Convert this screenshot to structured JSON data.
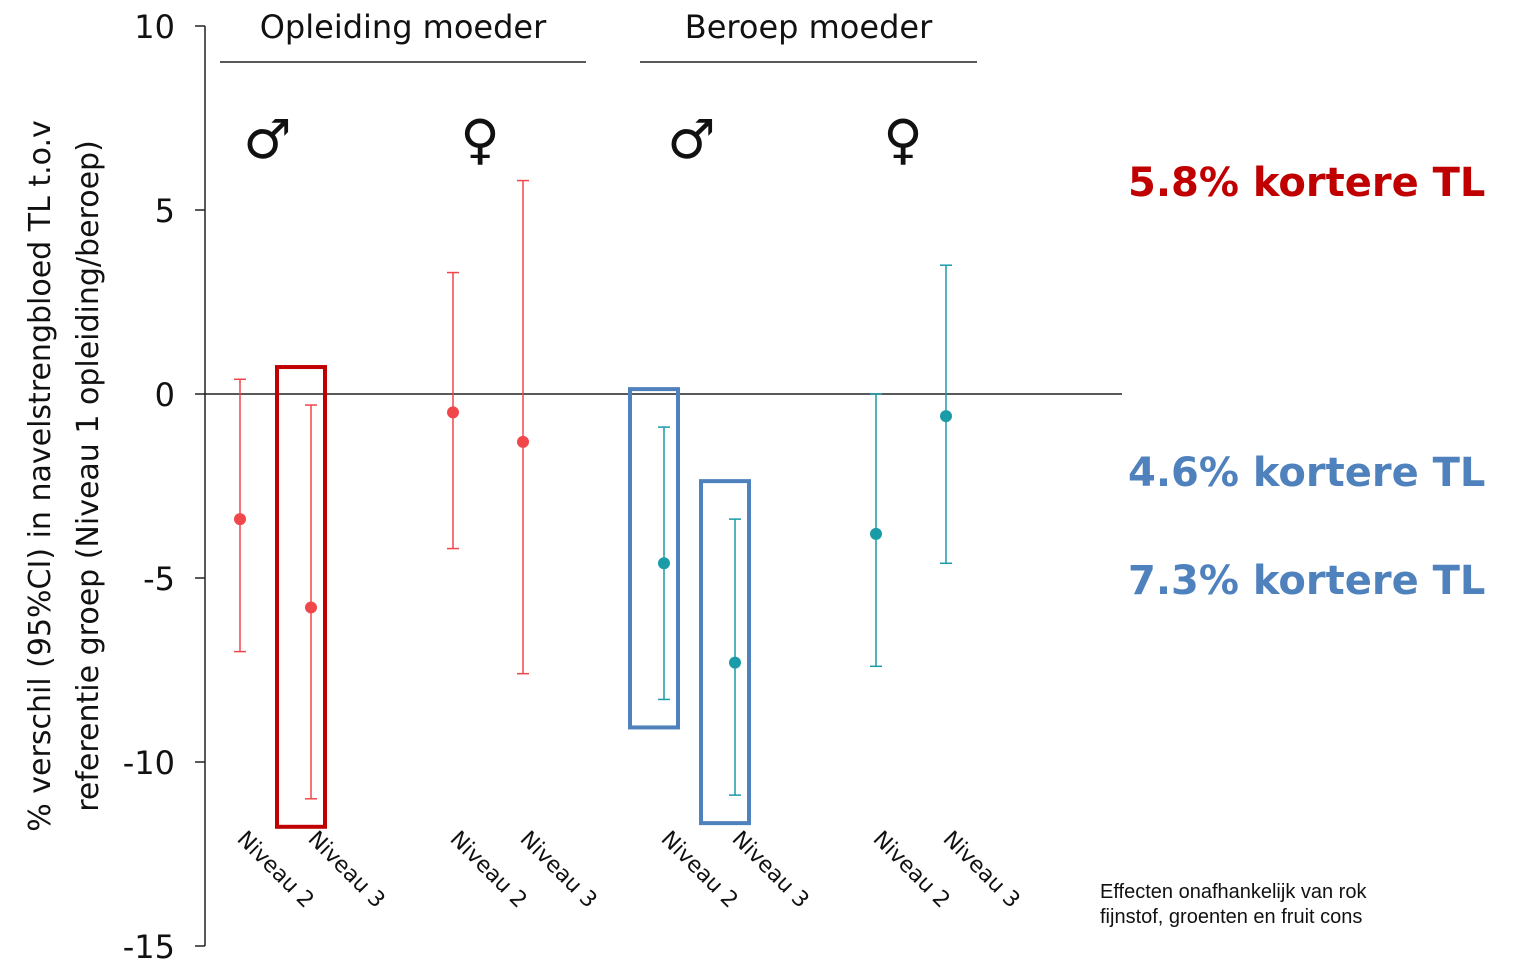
{
  "chart_data": {
    "type": "errorbar",
    "ylabel_line1": "% verschil (95%CI) in navelstrengbloed TL t.o.v",
    "ylabel_line2": "referentie groep (Niveau 1 opleiding/beroep)",
    "ylim": [
      -15,
      10
    ],
    "yticks": [
      10,
      5,
      0,
      -5,
      -10,
      -15
    ],
    "reference_line": 0,
    "groups": [
      {
        "label": "Opleiding moeder",
        "subgroups": [
          {
            "symbol": "♂",
            "color": "#f0474b"
          },
          {
            "symbol": "♀",
            "color": "#f0474b"
          }
        ]
      },
      {
        "label": "Beroep moeder",
        "subgroups": [
          {
            "symbol": "♂",
            "color": "#1a9ba8"
          },
          {
            "symbol": "♀",
            "color": "#1a9ba8"
          }
        ]
      }
    ],
    "points": [
      {
        "label": "Niveau 2",
        "group": 0,
        "sub": 0,
        "value": -3.4,
        "ci": [
          -7.0,
          0.4
        ]
      },
      {
        "label": "Niveau 3",
        "group": 0,
        "sub": 0,
        "value": -5.8,
        "ci": [
          -11.0,
          -0.3
        ],
        "highlight": "#c00000"
      },
      {
        "label": "Niveau 2",
        "group": 0,
        "sub": 1,
        "value": -0.5,
        "ci": [
          -4.2,
          3.3
        ]
      },
      {
        "label": "Niveau 3",
        "group": 0,
        "sub": 1,
        "value": -1.3,
        "ci": [
          -7.6,
          5.8
        ]
      },
      {
        "label": "Niveau 2",
        "group": 1,
        "sub": 0,
        "value": -4.6,
        "ci": [
          -8.3,
          -0.9
        ],
        "highlight": "#4f81bd"
      },
      {
        "label": "Niveau 3",
        "group": 1,
        "sub": 0,
        "value": -7.3,
        "ci": [
          -10.9,
          -3.4
        ],
        "highlight": "#4f81bd"
      },
      {
        "label": "Niveau 2",
        "group": 1,
        "sub": 1,
        "value": -3.8,
        "ci": [
          -7.4,
          0.0
        ]
      },
      {
        "label": "Niveau 3",
        "group": 1,
        "sub": 1,
        "value": -0.6,
        "ci": [
          -4.6,
          3.5
        ]
      }
    ]
  },
  "callouts": [
    {
      "text": "5.8% kortere TL",
      "color": "#c00000"
    },
    {
      "text": "4.6% kortere TL",
      "color": "#4f81bd"
    },
    {
      "text": "7.3% kortere TL",
      "color": "#4f81bd"
    }
  ],
  "note": {
    "line1": "Effecten onafhankelijk van rok",
    "line2": "fijnstof, groenten en fruit cons"
  }
}
